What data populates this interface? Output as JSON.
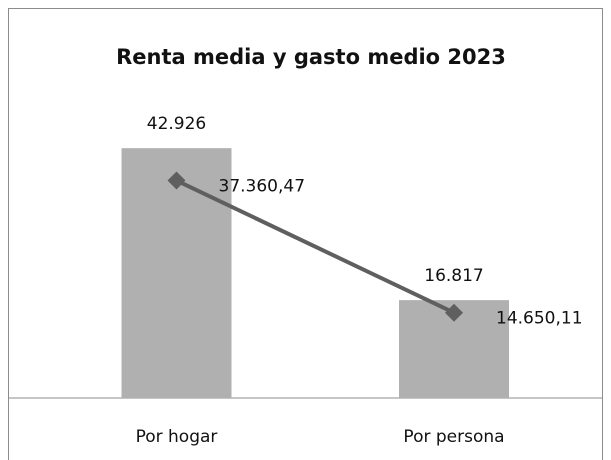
{
  "chart_data": {
    "type": "bar",
    "title": "Renta media y gasto medio 2023",
    "categories": [
      "Por hogar",
      "Por persona"
    ],
    "series": [
      {
        "type": "bar",
        "color": "#b0b0b0",
        "values": [
          42926,
          16817
        ],
        "value_labels": [
          "42.926",
          "16.817"
        ]
      },
      {
        "type": "line",
        "color": "#5f5f5f",
        "values": [
          37360.47,
          14650.11
        ],
        "value_labels": [
          "37.360,47",
          "14.650,11"
        ]
      }
    ],
    "ylim": [
      0,
      50000
    ]
  }
}
